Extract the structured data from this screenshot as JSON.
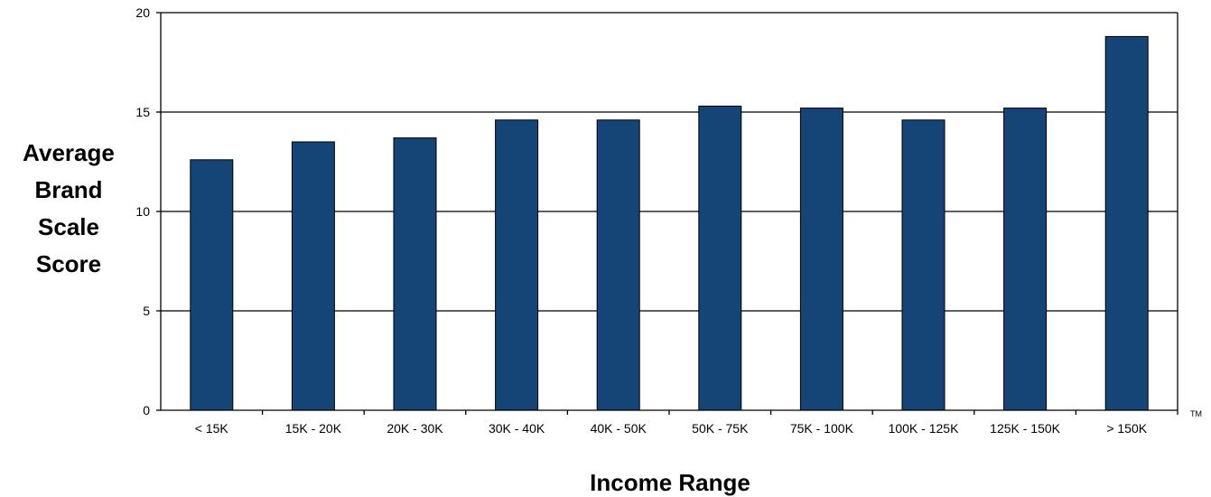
{
  "chart_data": {
    "type": "bar",
    "title": "",
    "xlabel": "Income Range",
    "ylabel_lines": [
      "Average",
      "Brand",
      "Scale",
      "Score"
    ],
    "categories": [
      "< 15K",
      "15K - 20K",
      "20K - 30K",
      "30K - 40K",
      "40K - 50K",
      "50K - 75K",
      "75K - 100K",
      "100K - 125K",
      "125K - 150K",
      "> 150K"
    ],
    "values": [
      12.6,
      13.5,
      13.7,
      14.6,
      14.6,
      15.3,
      15.2,
      14.6,
      15.2,
      18.8
    ],
    "ylim": [
      0,
      20
    ],
    "yticks": [
      0,
      5,
      10,
      15,
      20
    ],
    "grid": true,
    "legend": "none",
    "bar_color": "#154477",
    "trademark": "TM"
  }
}
